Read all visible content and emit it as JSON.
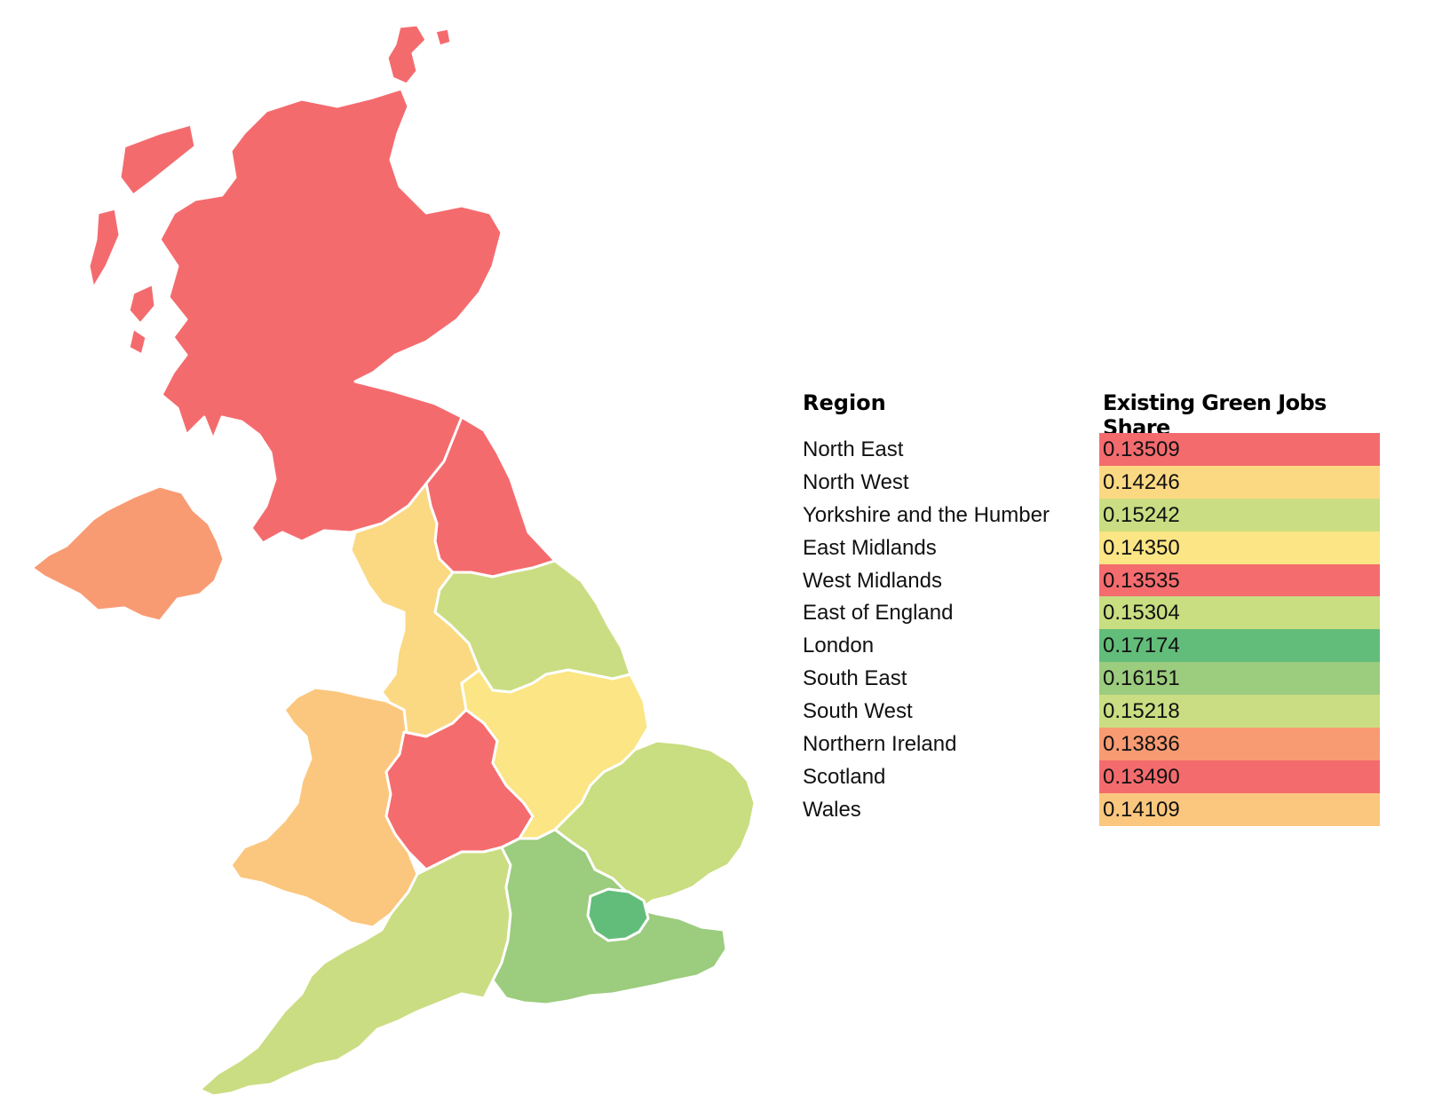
{
  "map": {
    "regions": [
      {
        "id": "scotland",
        "fill": "#f46b6e"
      },
      {
        "id": "northern-ireland",
        "fill": "#f89b73"
      },
      {
        "id": "north-east",
        "fill": "#f46b6e"
      },
      {
        "id": "north-west",
        "fill": "#fbd983"
      },
      {
        "id": "yorkshire-and-the-humber",
        "fill": "#cbdd82"
      },
      {
        "id": "wales",
        "fill": "#fbc77e"
      },
      {
        "id": "west-midlands",
        "fill": "#f46c6e"
      },
      {
        "id": "east-midlands",
        "fill": "#fbe584"
      },
      {
        "id": "east-of-england",
        "fill": "#c9dd81"
      },
      {
        "id": "south-west",
        "fill": "#cbdd82"
      },
      {
        "id": "south-east",
        "fill": "#9ccc7e"
      },
      {
        "id": "london",
        "fill": "#63bd7a"
      }
    ]
  },
  "table": {
    "header_region": "Region",
    "header_value": "Existing Green Jobs Share",
    "rows": [
      {
        "region": "North East",
        "value": "0.13509",
        "color": "#f46b6e"
      },
      {
        "region": "North West",
        "value": "0.14246",
        "color": "#fbd983"
      },
      {
        "region": "Yorkshire and the Humber",
        "value": "0.15242",
        "color": "#cbdd82"
      },
      {
        "region": "East Midlands",
        "value": "0.14350",
        "color": "#fbe584"
      },
      {
        "region": "West Midlands",
        "value": "0.13535",
        "color": "#f46c6e"
      },
      {
        "region": "East of England",
        "value": "0.15304",
        "color": "#c9dd81"
      },
      {
        "region": "London",
        "value": "0.17174",
        "color": "#63bd7a"
      },
      {
        "region": "South East",
        "value": "0.16151",
        "color": "#9ccc7e"
      },
      {
        "region": "South West",
        "value": "0.15218",
        "color": "#cbdd82"
      },
      {
        "region": "Northern Ireland",
        "value": "0.13836",
        "color": "#f89b73"
      },
      {
        "region": "Scotland",
        "value": "0.13490",
        "color": "#f46b6e"
      },
      {
        "region": "Wales",
        "value": "0.14109",
        "color": "#fbc77e"
      }
    ]
  }
}
